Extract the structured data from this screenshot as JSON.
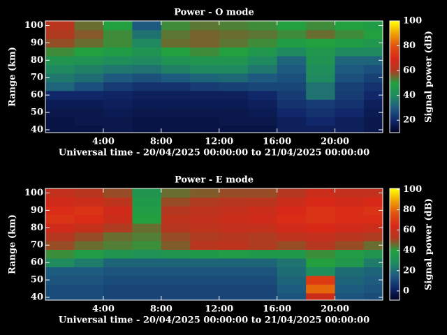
{
  "chart_data": [
    {
      "type": "heatmap",
      "title": "Power - O mode",
      "xlabel": "Universal time - 20/04/2025 00:00:00 to 21/04/2025 00:00:00",
      "ylabel": "Range (km)",
      "colorbar_label": "Signal power (dB)",
      "x": [
        1,
        3,
        5,
        7,
        9,
        11,
        13,
        15,
        17,
        19,
        21,
        23
      ],
      "y": [
        40,
        45,
        50,
        55,
        60,
        65,
        70,
        75,
        80,
        85,
        90,
        95,
        100
      ],
      "z": [
        [
          15,
          15,
          16,
          15,
          15,
          15,
          15,
          15,
          18,
          18,
          18,
          16
        ],
        [
          15,
          16,
          16,
          15,
          15,
          15,
          16,
          16,
          18,
          20,
          18,
          16
        ],
        [
          16,
          16,
          17,
          16,
          16,
          16,
          16,
          17,
          20,
          22,
          20,
          17
        ],
        [
          17,
          17,
          18,
          17,
          17,
          17,
          17,
          18,
          22,
          24,
          22,
          18
        ],
        [
          20,
          20,
          19,
          18,
          18,
          18,
          18,
          20,
          24,
          35,
          24,
          20
        ],
        [
          32,
          28,
          24,
          22,
          22,
          24,
          25,
          26,
          26,
          35,
          25,
          22
        ],
        [
          36,
          34,
          30,
          28,
          30,
          32,
          33,
          30,
          28,
          40,
          28,
          25
        ],
        [
          40,
          38,
          36,
          35,
          38,
          40,
          40,
          36,
          30,
          42,
          30,
          28
        ],
        [
          45,
          44,
          42,
          40,
          44,
          45,
          45,
          40,
          32,
          44,
          32,
          32
        ],
        [
          52,
          50,
          48,
          44,
          50,
          52,
          50,
          46,
          40,
          46,
          40,
          40
        ],
        [
          58,
          55,
          52,
          40,
          55,
          56,
          54,
          52,
          48,
          50,
          48,
          46
        ],
        [
          60,
          57,
          52,
          35,
          54,
          56,
          55,
          54,
          52,
          55,
          52,
          50
        ],
        [
          62,
          55,
          50,
          30,
          52,
          54,
          53,
          52,
          50,
          52,
          50,
          48
        ]
      ],
      "xlim": [
        0,
        23.3
      ],
      "ylim": [
        38.4,
        102.6
      ],
      "xticks": [
        {
          "value": 4,
          "label": "4:00"
        },
        {
          "value": 8,
          "label": "8:00"
        },
        {
          "value": 12,
          "label": "12:00"
        },
        {
          "value": 16,
          "label": "16:00"
        },
        {
          "value": 20,
          "label": "20:00"
        }
      ],
      "yticks": [
        40,
        50,
        60,
        70,
        80,
        90,
        100
      ],
      "clim": [
        10,
        100
      ],
      "cticks": [
        20,
        40,
        60,
        80,
        100
      ],
      "colormap": [
        "#000020",
        "#10286a",
        "#1e5a80",
        "#1f8a60",
        "#22a040",
        "#b03a20",
        "#d82818",
        "#e05010",
        "#f0a000",
        "#ffff00"
      ]
    },
    {
      "type": "heatmap",
      "title": "Power - E mode",
      "xlabel": "Universal time - 20/04/2025 00:00:00 to 21/04/2025 00:00:00",
      "ylabel": "Range (km)",
      "colorbar_label": "Signal power (dB)",
      "x": [
        1,
        3,
        5,
        7,
        9,
        11,
        13,
        15,
        17,
        19,
        21,
        23
      ],
      "y": [
        40,
        45,
        50,
        55,
        60,
        65,
        70,
        75,
        80,
        85,
        90,
        95,
        100
      ],
      "z": [
        [
          12,
          12,
          10,
          10,
          10,
          10,
          10,
          10,
          14,
          60,
          14,
          12
        ],
        [
          12,
          12,
          10,
          10,
          10,
          10,
          10,
          10,
          16,
          80,
          16,
          14
        ],
        [
          14,
          14,
          12,
          12,
          12,
          12,
          12,
          12,
          18,
          70,
          18,
          16
        ],
        [
          16,
          16,
          14,
          14,
          14,
          14,
          14,
          14,
          20,
          30,
          20,
          18
        ],
        [
          28,
          24,
          18,
          18,
          18,
          18,
          18,
          18,
          22,
          40,
          35,
          24
        ],
        [
          42,
          38,
          34,
          32,
          34,
          36,
          38,
          36,
          36,
          42,
          38,
          34
        ],
        [
          50,
          46,
          44,
          42,
          48,
          55,
          56,
          52,
          50,
          54,
          50,
          46
        ],
        [
          54,
          50,
          46,
          44,
          50,
          52,
          54,
          52,
          56,
          58,
          55,
          52
        ],
        [
          62,
          58,
          52,
          46,
          54,
          56,
          58,
          58,
          62,
          64,
          62,
          60
        ],
        [
          68,
          66,
          60,
          40,
          56,
          58,
          60,
          62,
          66,
          68,
          66,
          66
        ],
        [
          66,
          68,
          62,
          38,
          54,
          56,
          58,
          60,
          64,
          68,
          66,
          68
        ],
        [
          62,
          60,
          56,
          36,
          50,
          52,
          54,
          55,
          60,
          64,
          62,
          64
        ],
        [
          58,
          55,
          50,
          34,
          46,
          48,
          50,
          50,
          54,
          60,
          58,
          58
        ]
      ],
      "xlim": [
        0,
        23.3
      ],
      "ylim": [
        38.4,
        102.6
      ],
      "xticks": [
        {
          "value": 4,
          "label": "4:00"
        },
        {
          "value": 8,
          "label": "8:00"
        },
        {
          "value": 12,
          "label": "12:00"
        },
        {
          "value": 16,
          "label": "16:00"
        },
        {
          "value": 20,
          "label": "20:00"
        }
      ],
      "yticks": [
        40,
        50,
        60,
        70,
        80,
        90,
        100
      ],
      "clim": [
        -9,
        101
      ],
      "cticks": [
        0,
        20,
        40,
        60,
        80,
        100
      ],
      "colormap": [
        "#000020",
        "#10286a",
        "#1e5a80",
        "#1f8a60",
        "#22a040",
        "#b03a20",
        "#d82818",
        "#e05010",
        "#f0a000",
        "#ffff00"
      ]
    }
  ]
}
